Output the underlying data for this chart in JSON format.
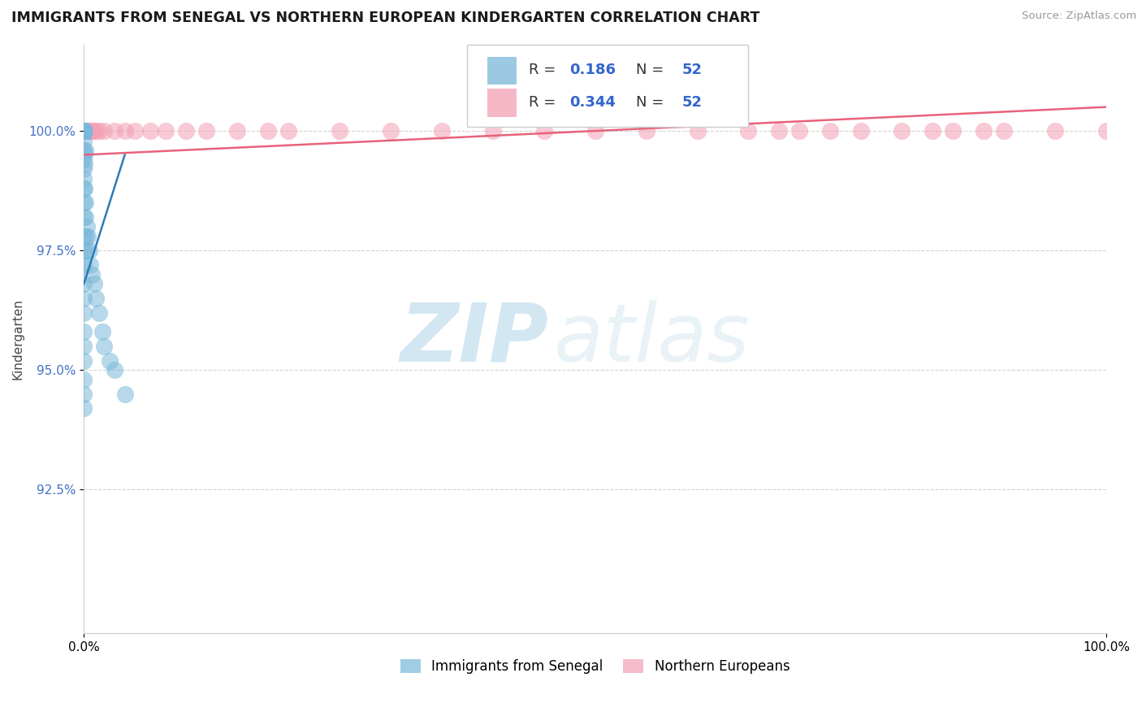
{
  "title": "IMMIGRANTS FROM SENEGAL VS NORTHERN EUROPEAN KINDERGARTEN CORRELATION CHART",
  "source": "Source: ZipAtlas.com",
  "ylabel": "Kindergarten",
  "xlim": [
    0.0,
    100.0
  ],
  "ylim": [
    89.5,
    101.8
  ],
  "yticks": [
    92.5,
    95.0,
    97.5,
    100.0
  ],
  "ytick_labels": [
    "92.5%",
    "95.0%",
    "97.5%",
    "100.0%"
  ],
  "xtick_labels": [
    "0.0%",
    "100.0%"
  ],
  "legend_labels": [
    "Immigrants from Senegal",
    "Northern Europeans"
  ],
  "R_senegal": 0.186,
  "R_northern": 0.344,
  "N_senegal": 52,
  "N_northern": 52,
  "blue_color": "#7ab8d9",
  "pink_color": "#f4a0b5",
  "blue_line_color": "#2c7bb6",
  "pink_line_color": "#e8627a",
  "watermark_zip": "ZIP",
  "watermark_atlas": "atlas",
  "background_color": "#ffffff",
  "senegal_x": [
    0.0,
    0.0,
    0.0,
    0.0,
    0.0,
    0.0,
    0.0,
    0.0,
    0.0,
    0.0,
    0.0,
    0.0,
    0.0,
    0.0,
    0.0,
    0.0,
    0.0,
    0.0,
    0.0,
    0.0,
    0.0,
    0.0,
    0.0,
    0.0,
    0.0,
    0.0,
    0.0,
    0.0,
    0.0,
    0.0,
    0.04,
    0.04,
    0.06,
    0.08,
    0.1,
    0.12,
    0.15,
    0.18,
    0.2,
    0.3,
    0.4,
    0.5,
    0.6,
    0.8,
    1.0,
    1.2,
    1.5,
    1.8,
    2.0,
    2.5,
    3.0,
    4.0
  ],
  "senegal_y": [
    100.0,
    100.0,
    100.0,
    100.0,
    100.0,
    100.0,
    100.0,
    100.0,
    100.0,
    100.0,
    99.8,
    99.6,
    99.4,
    99.2,
    99.0,
    98.8,
    98.5,
    98.2,
    97.8,
    97.5,
    97.2,
    96.8,
    96.5,
    96.2,
    95.8,
    95.5,
    95.2,
    94.8,
    94.5,
    94.2,
    100.0,
    99.5,
    99.3,
    98.8,
    99.6,
    98.5,
    98.2,
    97.8,
    97.5,
    98.0,
    97.8,
    97.5,
    97.2,
    97.0,
    96.8,
    96.5,
    96.2,
    95.8,
    95.5,
    95.2,
    95.0,
    94.5
  ],
  "northern_x": [
    0.0,
    0.0,
    0.0,
    0.0,
    0.0,
    0.0,
    0.0,
    0.0,
    0.0,
    0.0,
    0.05,
    0.1,
    0.15,
    0.2,
    0.3,
    0.4,
    0.5,
    0.7,
    0.9,
    1.2,
    1.5,
    2.0,
    3.0,
    4.0,
    5.0,
    6.5,
    8.0,
    10.0,
    12.0,
    15.0,
    18.0,
    20.0,
    25.0,
    30.0,
    35.0,
    40.0,
    45.0,
    50.0,
    55.0,
    60.0,
    65.0,
    68.0,
    70.0,
    73.0,
    76.0,
    80.0,
    83.0,
    85.0,
    88.0,
    90.0,
    95.0,
    100.0
  ],
  "northern_y": [
    100.0,
    100.0,
    100.0,
    100.0,
    100.0,
    100.0,
    100.0,
    100.0,
    100.0,
    100.0,
    100.0,
    100.0,
    100.0,
    100.0,
    100.0,
    100.0,
    100.0,
    100.0,
    100.0,
    100.0,
    100.0,
    100.0,
    100.0,
    100.0,
    100.0,
    100.0,
    100.0,
    100.0,
    100.0,
    100.0,
    100.0,
    100.0,
    100.0,
    100.0,
    100.0,
    100.0,
    100.0,
    100.0,
    100.0,
    100.0,
    100.0,
    100.0,
    100.0,
    100.0,
    100.0,
    100.0,
    100.0,
    100.0,
    100.0,
    100.0,
    100.0,
    100.0
  ],
  "senegal_trend_x": [
    0.0,
    4.0
  ],
  "senegal_trend_y": [
    96.8,
    99.5
  ],
  "northern_trend_x": [
    0.0,
    100.0
  ],
  "northern_trend_y": [
    99.5,
    100.5
  ]
}
